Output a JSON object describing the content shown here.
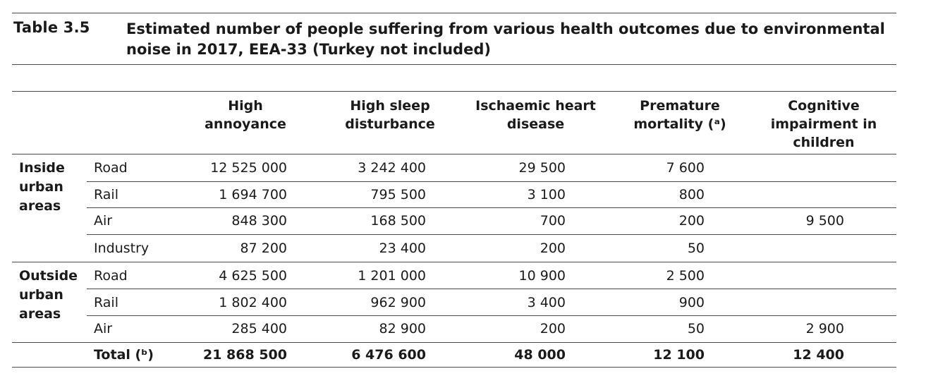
{
  "caption": {
    "label": "Table 3.5",
    "title": "Estimated number of people suffering from various health outcomes due to environmental noise in 2017, EEA-33 (Turkey not included)"
  },
  "columns": [
    "High annoyance",
    "High sleep disturbance",
    "Ischaemic heart disease",
    "Premature mortality (ᵃ)",
    "Cognitive impairment in children"
  ],
  "groups": [
    {
      "label": "Inside urban areas",
      "rows": [
        {
          "source": "Road",
          "values": [
            "12 525 000",
            "3 242 400",
            "29 500",
            "7 600",
            ""
          ]
        },
        {
          "source": "Rail",
          "values": [
            "1 694 700",
            "795 500",
            "3 100",
            "800",
            ""
          ]
        },
        {
          "source": "Air",
          "values": [
            "848 300",
            "168 500",
            "700",
            "200",
            "9 500"
          ]
        },
        {
          "source": "Industry",
          "values": [
            "87 200",
            "23 400",
            "200",
            "50",
            ""
          ]
        }
      ]
    },
    {
      "label": "Outside urban areas",
      "rows": [
        {
          "source": "Road",
          "values": [
            "4 625 500",
            "1 201 000",
            "10 900",
            "2 500",
            ""
          ]
        },
        {
          "source": "Rail",
          "values": [
            "1 802 400",
            "962 900",
            "3 400",
            "900",
            ""
          ]
        },
        {
          "source": "Air",
          "values": [
            "285 400",
            "82 900",
            "200",
            "50",
            "2 900"
          ]
        }
      ]
    }
  ],
  "total": {
    "label": "Total (ᵇ)",
    "values": [
      "21 868 500",
      "6 476 600",
      "48 000",
      "12 100",
      "12 400"
    ]
  }
}
